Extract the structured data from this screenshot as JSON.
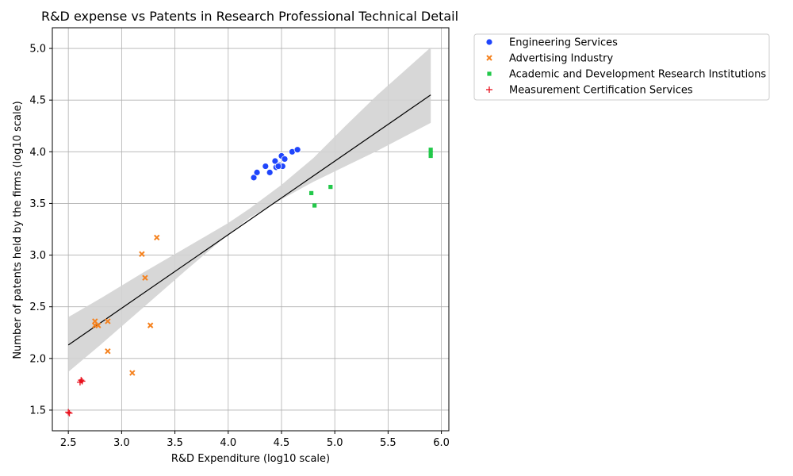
{
  "chart_data": {
    "type": "scatter",
    "title": "R&D expense vs Patents in Research Professional Technical Detail",
    "xlabel": "R&D Expenditure (log10 scale)",
    "ylabel": "Number of patents held by the firms (log10 scale)",
    "xlim": [
      2.35,
      6.07
    ],
    "ylim": [
      1.3,
      5.2
    ],
    "xticks": [
      "2.5",
      "3.0",
      "3.5",
      "4.0",
      "4.5",
      "5.0",
      "5.5",
      "6.0"
    ],
    "yticks": [
      "1.5",
      "2.0",
      "2.5",
      "3.0",
      "3.5",
      "4.0",
      "4.5",
      "5.0"
    ],
    "grid": true,
    "legend_position": "outside-top-right",
    "series": [
      {
        "name": "Engineering Services",
        "marker": "circle",
        "color": "#1f45fc",
        "points": [
          [
            4.24,
            3.75
          ],
          [
            4.27,
            3.8
          ],
          [
            4.35,
            3.86
          ],
          [
            4.39,
            3.8
          ],
          [
            4.44,
            3.91
          ],
          [
            4.45,
            3.85
          ],
          [
            4.48,
            3.87
          ],
          [
            4.5,
            3.96
          ],
          [
            4.51,
            3.86
          ],
          [
            4.53,
            3.93
          ],
          [
            4.6,
            4.0
          ],
          [
            4.65,
            4.02
          ],
          [
            4.47,
            3.86
          ]
        ]
      },
      {
        "name": "Advertising Industry",
        "marker": "x",
        "color": "#f5821f",
        "points": [
          [
            2.75,
            2.36
          ],
          [
            2.75,
            2.32
          ],
          [
            2.78,
            2.32
          ],
          [
            2.87,
            2.36
          ],
          [
            2.87,
            2.07
          ],
          [
            3.1,
            1.86
          ],
          [
            3.19,
            3.01
          ],
          [
            3.22,
            2.78
          ],
          [
            3.27,
            2.32
          ],
          [
            3.33,
            3.17
          ]
        ]
      },
      {
        "name": "Academic and Development Research Institutions",
        "marker": "square",
        "color": "#22c84a",
        "points": [
          [
            4.78,
            3.6
          ],
          [
            4.81,
            3.48
          ],
          [
            4.96,
            3.66
          ],
          [
            5.9,
            3.96
          ],
          [
            5.9,
            3.99
          ],
          [
            5.9,
            4.02
          ]
        ]
      },
      {
        "name": "Measurement Certification Services",
        "marker": "plus",
        "color": "#e8101c",
        "points": [
          [
            2.5,
            1.48
          ],
          [
            2.51,
            1.47
          ],
          [
            2.61,
            1.77
          ],
          [
            2.62,
            1.79
          ],
          [
            2.63,
            1.78
          ]
        ]
      }
    ],
    "regression": {
      "color": "#000000",
      "band_color": "#d3d3d3",
      "line": [
        [
          2.5,
          2.13
        ],
        [
          5.9,
          4.55
        ]
      ],
      "band": [
        [
          2.5,
          1.87,
          2.4
        ],
        [
          2.8,
          2.13,
          2.58
        ],
        [
          3.2,
          2.49,
          2.83
        ],
        [
          3.6,
          2.85,
          3.07
        ],
        [
          4.0,
          3.2,
          3.31
        ],
        [
          4.2,
          3.36,
          3.45
        ],
        [
          4.5,
          3.54,
          3.68
        ],
        [
          4.8,
          3.71,
          3.94
        ],
        [
          5.1,
          3.86,
          4.25
        ],
        [
          5.4,
          4.01,
          4.55
        ],
        [
          5.9,
          4.28,
          5.01
        ]
      ]
    }
  }
}
